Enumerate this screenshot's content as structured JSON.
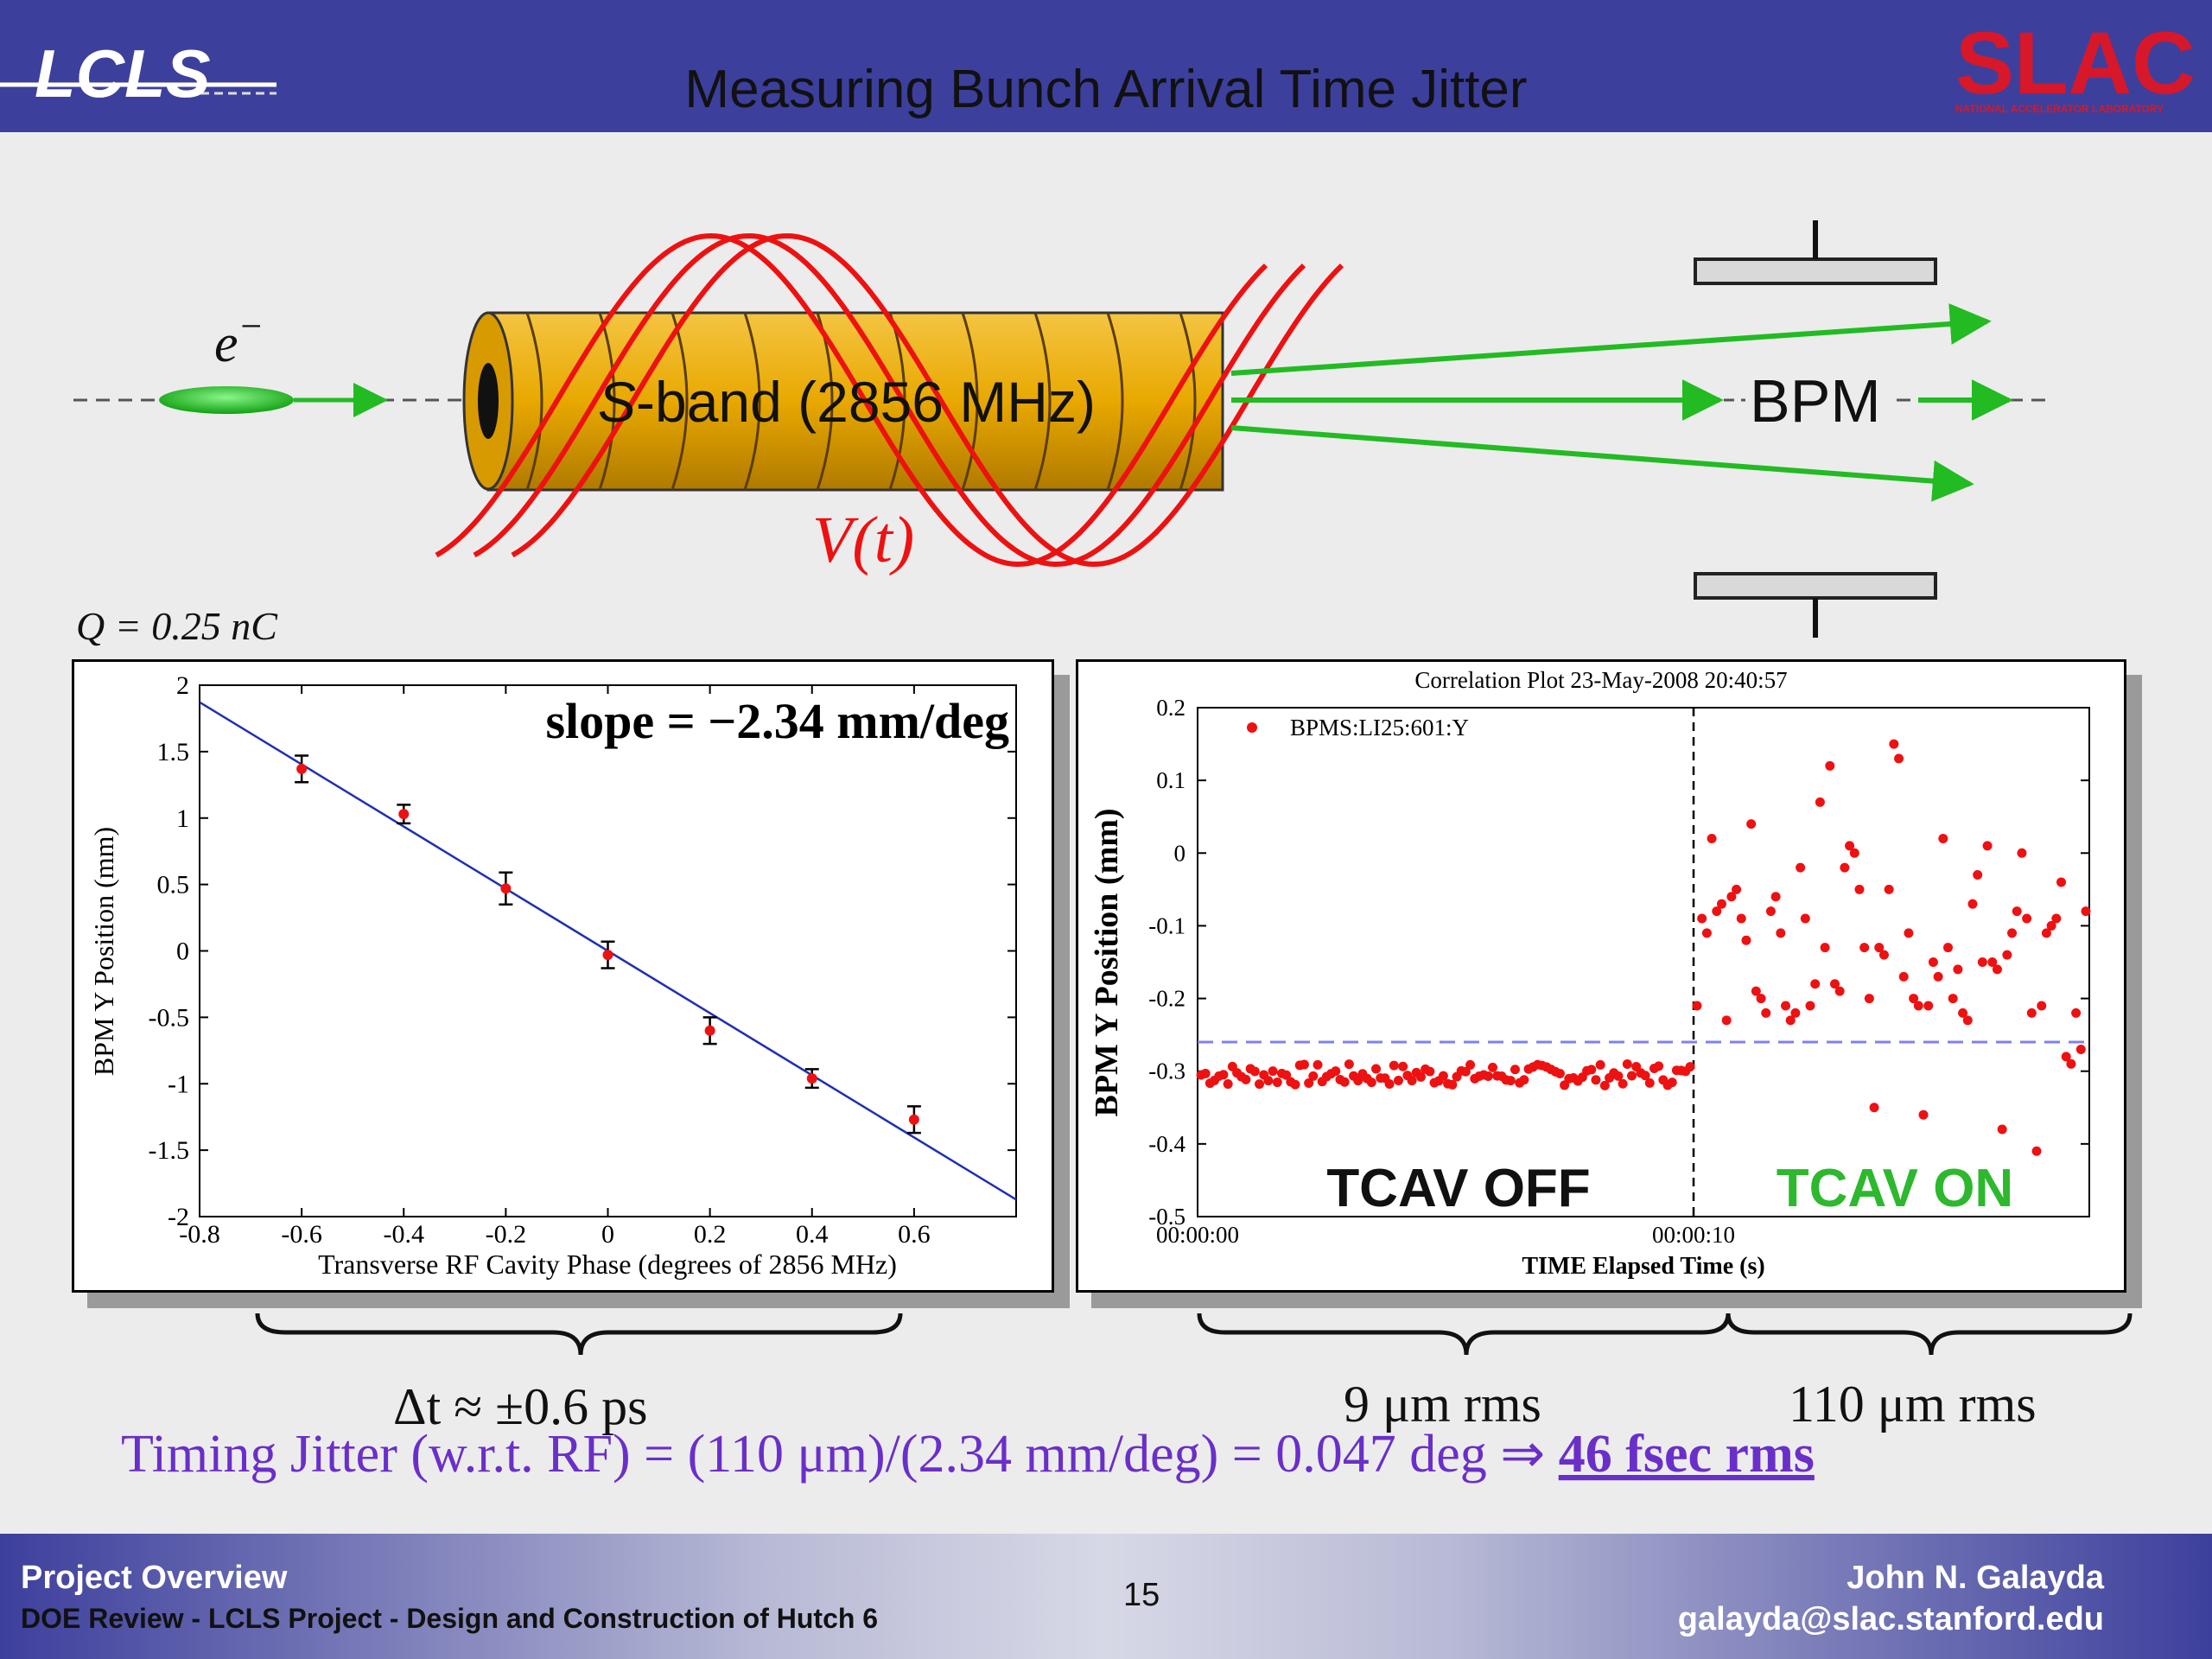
{
  "header": {
    "title": "Measuring Bunch Arrival Time Jitter",
    "left_logo": "LCLS",
    "right_logo": "SLAC",
    "right_logo_sub": "NATIONAL ACCELERATOR LABORATORY"
  },
  "diagram": {
    "electron_label": "e",
    "electron_sup": "−",
    "cavity_label_s": "S",
    "cavity_label_rest": "-band (2856 MHz)",
    "voltage_label": "V(t)",
    "bpm_label": "BPM",
    "charge_label": "Q = 0.25 nC"
  },
  "chart_data": [
    {
      "type": "scatter",
      "xlabel": "Transverse RF Cavity Phase (degrees of 2856 MHz)",
      "ylabel": "BPM Y Position (mm)",
      "xlim": [
        -0.8,
        0.8
      ],
      "ylim": [
        -2,
        2
      ],
      "xticks": [
        "-0.8",
        "-0.6",
        "-0.4",
        "-0.2",
        "0",
        "0.2",
        "0.4",
        "0.6"
      ],
      "yticks": [
        "2",
        "1.5",
        "1",
        "0.5",
        "0",
        "-0.5",
        "-1",
        "-1.5",
        "-2"
      ],
      "annotation": "slope = −2.34 mm/deg",
      "points": [
        {
          "x": -0.6,
          "y": 1.37,
          "err": 0.1
        },
        {
          "x": -0.4,
          "y": 1.03,
          "err": 0.07
        },
        {
          "x": -0.2,
          "y": 0.47,
          "err": 0.12
        },
        {
          "x": 0.0,
          "y": -0.03,
          "err": 0.1
        },
        {
          "x": 0.2,
          "y": -0.6,
          "err": 0.1
        },
        {
          "x": 0.4,
          "y": -0.96,
          "err": 0.07
        },
        {
          "x": 0.6,
          "y": -1.27,
          "err": 0.1
        }
      ],
      "fit": {
        "slope": -2.34,
        "intercept": 0.0
      }
    },
    {
      "type": "scatter",
      "title": "Correlation Plot 23-May-2008 20:40:57",
      "xlabel": "TIME Elapsed Time (s)",
      "ylabel": "BPM Y Position (mm)",
      "ylim": [
        -0.5,
        0.2
      ],
      "yticks": [
        "0.2",
        "0.1",
        "0",
        "-0.1",
        "-0.2",
        "-0.3",
        "-0.4",
        "-0.5"
      ],
      "xticks": [
        "00:00:00",
        "00:00:10"
      ],
      "legend": "BPMS:LI25:601:Y",
      "reference_line": -0.26,
      "off_label": "TCAV OFF",
      "on_label": "TCAV ON",
      "off_mean": -0.305,
      "off_count": 110,
      "on_points": [
        -0.21,
        -0.09,
        -0.11,
        0.02,
        -0.08,
        -0.07,
        -0.23,
        -0.06,
        -0.05,
        -0.09,
        -0.12,
        0.04,
        -0.19,
        -0.2,
        -0.22,
        -0.08,
        -0.06,
        -0.11,
        -0.21,
        -0.23,
        -0.22,
        -0.02,
        -0.09,
        -0.21,
        -0.18,
        0.07,
        -0.13,
        0.12,
        -0.18,
        -0.19,
        -0.02,
        0.01,
        0.0,
        -0.05,
        -0.13,
        -0.2,
        -0.35,
        -0.13,
        -0.14,
        -0.05,
        0.15,
        0.13,
        -0.17,
        -0.11,
        -0.2,
        -0.21,
        -0.36,
        -0.21,
        -0.15,
        -0.17,
        0.02,
        -0.13,
        -0.2,
        -0.16,
        -0.22,
        -0.23,
        -0.07,
        -0.03,
        -0.15,
        0.01,
        -0.15,
        -0.16,
        -0.38,
        -0.14,
        -0.11,
        -0.08,
        0.0,
        -0.09,
        -0.22,
        -0.41,
        -0.21,
        -0.11,
        -0.1,
        -0.09,
        -0.04,
        -0.28,
        -0.29,
        -0.22,
        -0.27,
        -0.08
      ]
    }
  ],
  "summary": {
    "left_brace_text": "Δt ≈ ±0.6 ps",
    "mid_brace_text": "9 μm rms",
    "right_brace_text": "110 μm rms",
    "timing_text": "Timing Jitter (w.r.t. RF) = (110 μm)/(2.34 mm/deg) = 0.047 deg ⇒",
    "timing_result": "46 fsec rms"
  },
  "footer": {
    "left_line1": "Project Overview",
    "left_line2": "DOE Review - LCLS Project - Design and Construction of Hutch 6",
    "page_number": "15",
    "right_line1": "John N. Galayda",
    "right_line2": "galayda@slac.stanford.edu"
  },
  "colors": {
    "header": "#3d3f9d",
    "beam": "#22bb22",
    "rf": "#ee1111",
    "cavity": "#e8a800",
    "timing_text": "#6a2fc9",
    "tcav_on": "#2db82d"
  }
}
